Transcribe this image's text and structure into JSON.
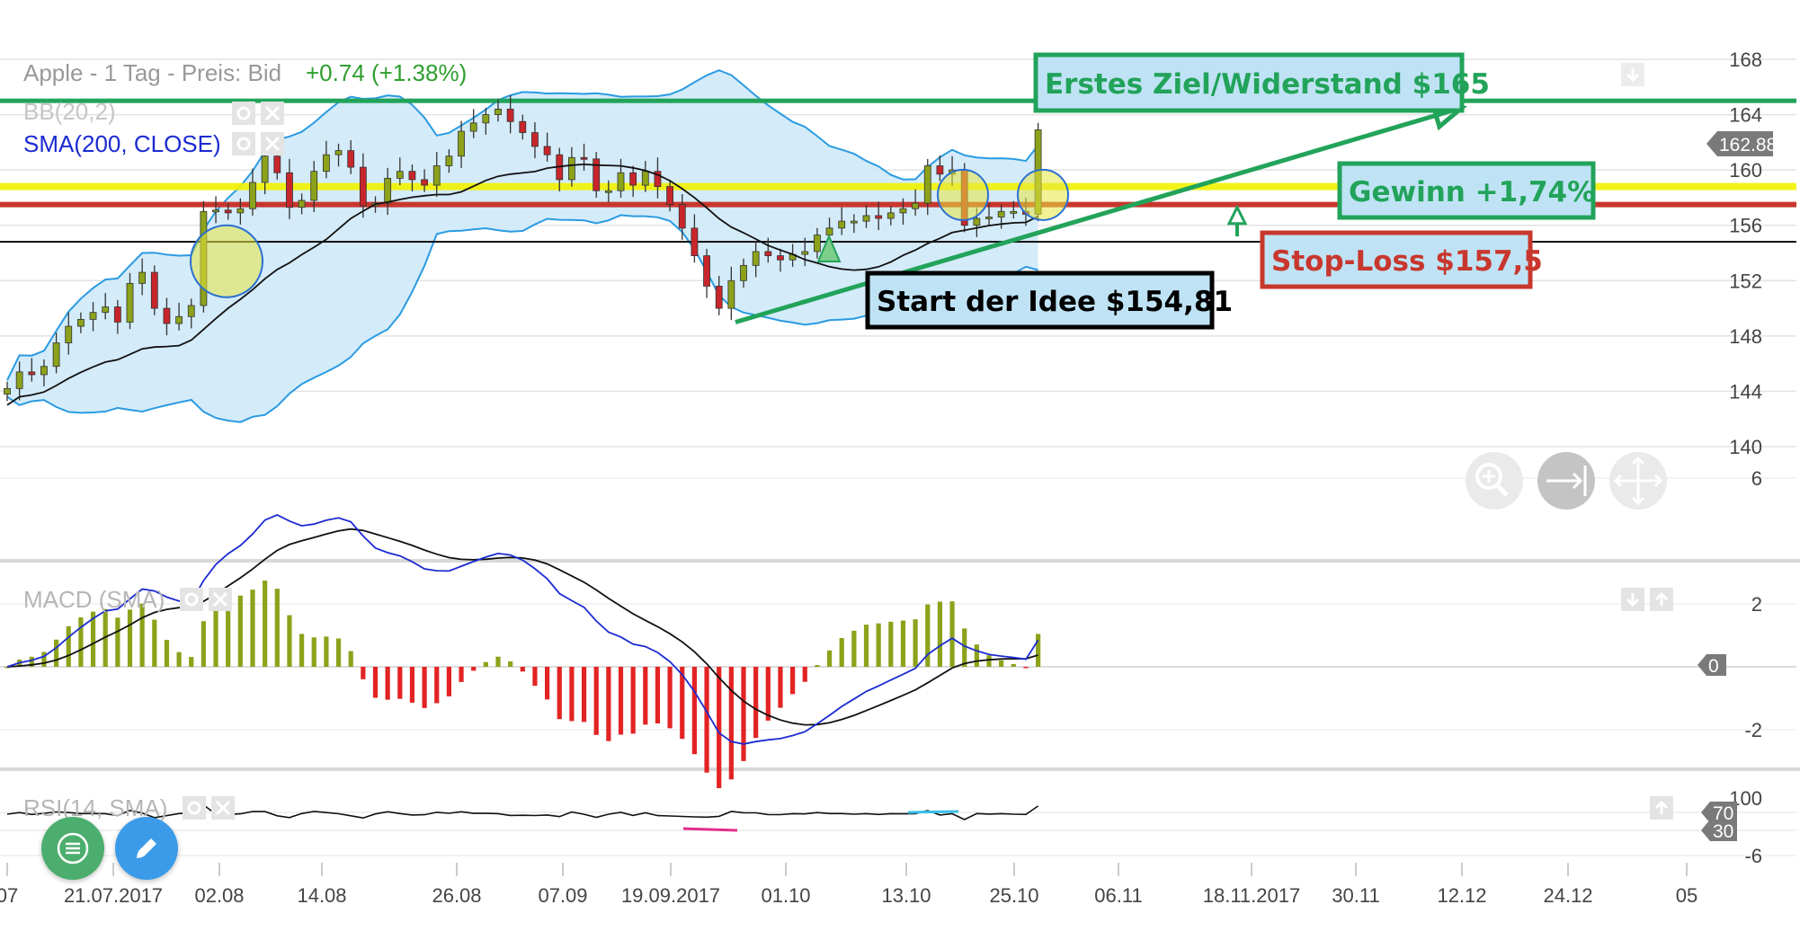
{
  "header": {
    "title": "Apple - 1 Tag - Preis: Bid",
    "change": "+0.74 (+1.38%)",
    "bb_label": "BB(20,2)",
    "sma_label": "SMA(200, CLOSE)"
  },
  "macd_label": "MACD (SMA)",
  "rsi_label": "RSI(14, SMA)",
  "last_price_badge": "162.88",
  "macd_zero_badge": "0",
  "rsi_badge_70": "70",
  "rsi_badge_30": "30",
  "colors": {
    "bull": "#8ca21a",
    "bear": "#c8262c",
    "bb_fill": "#cfe9f8",
    "bb_line": "#2a9be2",
    "sma": "#111111",
    "target": "#22a35a",
    "stop": "#c8372d",
    "yellow": "#f2f200",
    "macd_line": "#1b2bd1",
    "signal_line": "#111111"
  },
  "annotations": {
    "target": "Erstes Ziel/Widerstand $165",
    "gain": "Gewinn +1,74%",
    "stop": "Stop-Loss $157,5",
    "start": "Start der Idee $154,81"
  },
  "chart_data": [
    {
      "type": "candlestick",
      "title": "Apple - 1 Tag - Preis: Bid",
      "y_ticks": [
        140,
        144,
        148,
        152,
        156,
        160,
        164,
        168
      ],
      "ylim": [
        137.5,
        170
      ],
      "x_ticks": [
        "07",
        "21.07.2017",
        "02.08",
        "14.08",
        "26.08",
        "07.09",
        "19.09.2017",
        "01.10",
        "13.10",
        "25.10",
        "06.11",
        "18.11.2017",
        "30.11",
        "12.12",
        "24.12",
        "05"
      ],
      "closes": [
        144.2,
        145.4,
        145.2,
        145.8,
        147.5,
        148.7,
        149.2,
        149.7,
        150.1,
        149.0,
        151.8,
        152.6,
        150.0,
        148.9,
        149.4,
        150.2,
        157.0,
        157.1,
        156.9,
        157.2,
        159.1,
        161.0,
        159.8,
        157.3,
        157.8,
        159.9,
        161.1,
        161.4,
        160.2,
        157.4,
        157.6,
        159.4,
        159.9,
        159.3,
        158.9,
        160.3,
        161.0,
        162.8,
        163.4,
        164.0,
        164.4,
        163.5,
        162.7,
        161.7,
        161.1,
        159.3,
        160.9,
        160.8,
        158.5,
        158.5,
        159.8,
        158.9,
        159.9,
        158.8,
        157.5,
        155.8,
        153.8,
        151.6,
        150.0,
        152.0,
        153.1,
        154.1,
        153.8,
        153.5,
        153.9,
        154.1,
        155.3,
        155.8,
        156.3,
        156.3,
        156.7,
        156.5,
        156.9,
        157.2,
        157.6,
        160.3,
        159.7,
        160.0,
        156.0,
        156.5,
        156.6,
        157.0,
        157.0,
        156.8,
        162.9
      ],
      "levels": {
        "target": 165,
        "gain": 158.8,
        "stop": 157.5,
        "start": 154.81
      },
      "arrow_from": {
        "x": "01.10",
        "y": 149.0
      },
      "arrow_to": {
        "x": "12.12",
        "y": 164.5
      }
    },
    {
      "type": "bar",
      "title": "MACD (SMA)",
      "y_ticks": [
        6,
        2,
        -2,
        -6
      ],
      "ylim": [
        -7.5,
        7.5
      ]
    },
    {
      "type": "line",
      "title": "RSI(14, SMA)",
      "y_ticks": [
        100
      ],
      "levels": [
        70,
        30
      ]
    }
  ]
}
